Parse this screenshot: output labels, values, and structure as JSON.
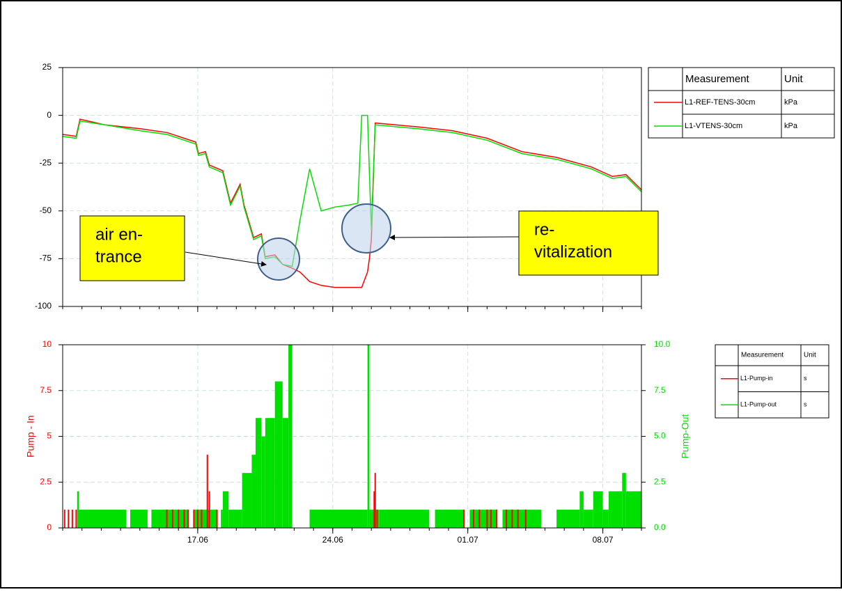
{
  "chart_data": [
    {
      "type": "line",
      "xlim": [
        0,
        30
      ],
      "xticks": [
        {
          "value": 7,
          "label": "17.06"
        },
        {
          "value": 14,
          "label": "24.06"
        },
        {
          "value": 21,
          "label": "01.07"
        },
        {
          "value": 28,
          "label": "08.07"
        }
      ],
      "ylim": [
        -100,
        25
      ],
      "yticks": [
        25,
        0,
        -25,
        -50,
        -75,
        -100
      ],
      "grid": true,
      "legend_headers": [
        "Measurement",
        "Unit"
      ],
      "x": [
        0,
        0.7,
        0.9,
        2.2,
        4,
        5.4,
        6.9,
        7.04,
        7.4,
        7.6,
        8.3,
        8.7,
        9.2,
        9.4,
        9.9,
        10.3,
        10.5,
        11,
        11.4,
        11.9,
        12.3,
        12.8,
        13.4,
        14.1,
        14.8,
        15.3,
        15.5,
        15.8,
        15.9,
        16,
        16.2,
        18.4,
        20.2,
        22,
        23.8,
        25.6,
        27.4,
        28.5,
        29.2,
        30
      ],
      "series": [
        {
          "name": "L1-REF-TENS-30cm",
          "unit": "kPa",
          "color": "#ff0000",
          "values": [
            -10,
            -11,
            -2,
            -5,
            -7,
            -9,
            -14,
            -20,
            -19,
            -26,
            -29,
            -46,
            -36,
            -47,
            -64,
            -62,
            -74,
            -73,
            -78,
            -80,
            -82,
            -87,
            -89,
            -90,
            -90,
            -90,
            -90,
            -82,
            -75,
            -65,
            -4,
            -6,
            -8,
            -12,
            -19,
            -22,
            -27,
            -32,
            -31,
            -39
          ]
        },
        {
          "name": "L1-VTENS-30cm",
          "unit": "kPa",
          "color": "#00e000",
          "values": [
            -11,
            -12,
            -3,
            -5,
            -8,
            -10,
            -15,
            -21,
            -20,
            -27,
            -30,
            -47,
            -37,
            -48,
            -65,
            -63,
            -75,
            -74,
            -78,
            -79,
            -55,
            -28,
            -50,
            -48,
            -47,
            -46,
            0,
            0,
            -30,
            -60,
            -5,
            -7,
            -9,
            -13,
            -20,
            -23,
            -28,
            -33,
            -32,
            -40
          ]
        }
      ],
      "annotations": [
        {
          "text": [
            "air en-",
            "trance"
          ]
        },
        {
          "text": [
            "re-",
            "vitalization"
          ]
        }
      ]
    },
    {
      "type": "bar",
      "xlim": [
        0,
        30
      ],
      "xticks": [
        {
          "value": 7,
          "label": "17.06"
        },
        {
          "value": 14,
          "label": "24.06"
        },
        {
          "value": 21,
          "label": "01.07"
        },
        {
          "value": 28,
          "label": "08.07"
        }
      ],
      "ylim": [
        0,
        10
      ],
      "yticks": [
        0,
        2.5,
        5,
        7.5,
        10
      ],
      "y2lim": [
        0,
        10
      ],
      "y2ticks": [
        {
          "value": 0,
          "label": "0.0"
        },
        {
          "value": 2.5,
          "label": "2.5"
        },
        {
          "value": 5,
          "label": "5.0"
        },
        {
          "value": 7.5,
          "label": "7.5"
        },
        {
          "value": 10,
          "label": "10.0"
        }
      ],
      "ylabel": "Pump - In",
      "y2label": "Pump-Out",
      "grid": true,
      "legend_headers": [
        "Measurement",
        "Unit"
      ],
      "series": [
        {
          "name": "L1-Pump-in",
          "unit": "s",
          "color": "#ff0000",
          "x": [
            0.1,
            0.3,
            0.5,
            0.7,
            5.4,
            5.7,
            6.0,
            6.3,
            6.5,
            6.8,
            7.0,
            7.2,
            7.5,
            7.6,
            8.0,
            16.15,
            16.2,
            16.3,
            20.8,
            21.3,
            21.6,
            22.0,
            22.2,
            22.5,
            23.0,
            23.3,
            23.6,
            24.0
          ],
          "values": [
            1,
            1,
            1,
            1,
            1,
            1,
            1,
            1,
            1,
            1,
            1,
            1,
            4,
            2,
            1,
            2,
            3,
            1,
            1,
            1,
            1,
            1,
            1,
            1,
            1,
            1,
            1,
            1
          ]
        },
        {
          "name": "L1-Pump-out",
          "unit": "s",
          "color": "#00e000",
          "axis": "y2",
          "x": [
            0,
            0.75,
            0.85,
            3.3,
            3.5,
            4.4,
            4.6,
            6.5,
            6.8,
            8.0,
            8.2,
            8.3,
            8.6,
            9.3,
            9.8,
            10.0,
            10.3,
            10.5,
            11.0,
            11.4,
            11.7,
            11.9,
            12.8,
            15.8,
            15.9,
            16.4,
            19.0,
            19.3,
            20.8,
            21.1,
            22.5,
            22.8,
            24.8,
            25.6,
            26.8,
            27.0,
            27.5,
            28.0,
            28.3,
            29.0,
            29.2
          ],
          "values": [
            0,
            2,
            1,
            0,
            1,
            0,
            1,
            0,
            1,
            0,
            1,
            2,
            1,
            3,
            4,
            6,
            5,
            6,
            8,
            6,
            10,
            0,
            1,
            10,
            1,
            1,
            0,
            1,
            0,
            1,
            0,
            1,
            0,
            1,
            2,
            1,
            2,
            1,
            2,
            3,
            2
          ]
        }
      ]
    }
  ]
}
